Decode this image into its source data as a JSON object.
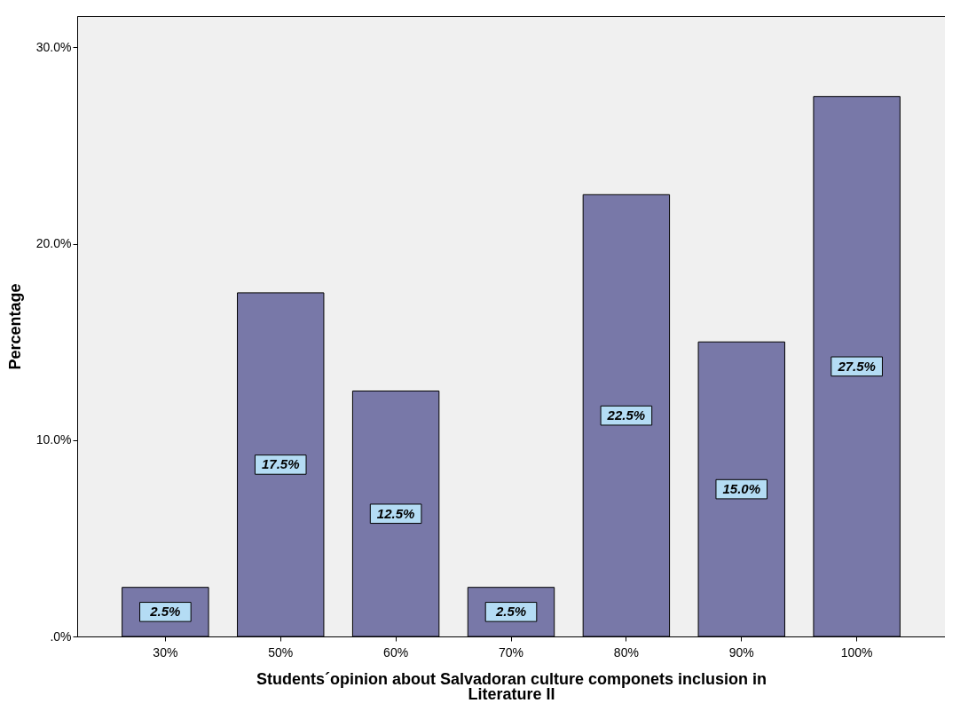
{
  "chart_data": {
    "type": "bar",
    "xlabel": "Students´opinion about Salvadoran culture componets inclusion in\nLiterature II",
    "ylabel": "Percentage",
    "categories": [
      "30%",
      "50%",
      "60%",
      "70%",
      "80%",
      "90%",
      "100%"
    ],
    "values": [
      2.5,
      17.5,
      12.5,
      2.5,
      22.5,
      15.0,
      27.5
    ],
    "value_labels": [
      "2.5%",
      "17.5%",
      "12.5%",
      "2.5%",
      "22.5%",
      "15.0%",
      "27.5%"
    ],
    "color": "#7878a8",
    "ylim": [
      0,
      31.6
    ],
    "yticks": [
      {
        "value": 0,
        "label": ".0%"
      },
      {
        "value": 10,
        "label": "10.0%"
      },
      {
        "value": 20,
        "label": "20.0%"
      },
      {
        "value": 30,
        "label": "30.0%"
      }
    ],
    "grid": false
  }
}
